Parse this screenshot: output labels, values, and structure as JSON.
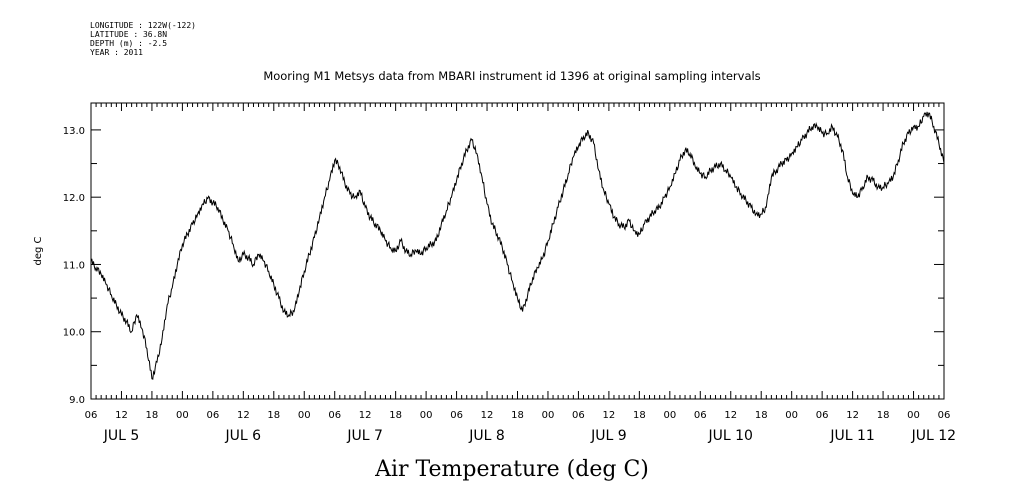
{
  "header": {
    "longitude": "LONGITUDE : 122W(-122)",
    "latitude": "LATITUDE : 36.8N",
    "depth": "DEPTH (m) : -2.5",
    "year": "YEAR : 2011"
  },
  "chart_data": {
    "type": "line",
    "title": "Mooring M1 Metsys data from MBARI instrument id 1396 at original sampling intervals",
    "xlabel": "Air Temperature (deg C)",
    "ylabel": "deg C",
    "ylim": [
      9.0,
      13.4
    ],
    "y_ticks": [
      "9.0",
      "10.0",
      "11.0",
      "12.0",
      "13.0"
    ],
    "x_range_hours": [
      0,
      168
    ],
    "x_hour_ticks": [
      "06",
      "12",
      "18",
      "00",
      "06",
      "12",
      "18",
      "00",
      "06",
      "12",
      "18",
      "00",
      "06",
      "12",
      "18",
      "00",
      "06",
      "12",
      "18",
      "00",
      "06",
      "12",
      "18",
      "00",
      "06",
      "12",
      "18",
      "00",
      "06"
    ],
    "x_day_labels": [
      {
        "label": "JUL  5",
        "hour": 6
      },
      {
        "label": "JUL  6",
        "hour": 30
      },
      {
        "label": "JUL  7",
        "hour": 54
      },
      {
        "label": "JUL  8",
        "hour": 78
      },
      {
        "label": "JUL  9",
        "hour": 102
      },
      {
        "label": "JUL 10",
        "hour": 126
      },
      {
        "label": "JUL 11",
        "hour": 150
      },
      {
        "label": "JUL 12",
        "hour": 166
      }
    ],
    "grid": false,
    "series": [
      {
        "color": "#000000",
        "x_hours": [
          0,
          1,
          2,
          3,
          4,
          5,
          6,
          7,
          8,
          9,
          10,
          11,
          12,
          13,
          14,
          15,
          16,
          17,
          18,
          19,
          20,
          21,
          22,
          23,
          24,
          25,
          26,
          27,
          28,
          29,
          30,
          31,
          32,
          33,
          34,
          35,
          36,
          37,
          38,
          39,
          40,
          41,
          42,
          43,
          44,
          45,
          46,
          47,
          48,
          49,
          50,
          51,
          52,
          53,
          54,
          55,
          56,
          57,
          58,
          59,
          60,
          61,
          62,
          63,
          64,
          65,
          66,
          67,
          68,
          69,
          70,
          71,
          72,
          73,
          74,
          75,
          76,
          77,
          78,
          79,
          80,
          81,
          82,
          83,
          84,
          85,
          86,
          87,
          88,
          89,
          90,
          91,
          92,
          93,
          94,
          95,
          96,
          97,
          98,
          99,
          100,
          101,
          102,
          103,
          104,
          105,
          106,
          107,
          108,
          109,
          110,
          111,
          112,
          113,
          114,
          115,
          116,
          117,
          118,
          119,
          120,
          121,
          122,
          123,
          124,
          125,
          126,
          127,
          128,
          129,
          130,
          131,
          132,
          133,
          134,
          135,
          136,
          137,
          138,
          139,
          140,
          141,
          142,
          143,
          144,
          145,
          146,
          147,
          148,
          149,
          150,
          151,
          152,
          153,
          154,
          155,
          156,
          157,
          158,
          159,
          160,
          161,
          162,
          163,
          164,
          165,
          166,
          167,
          168
        ],
        "values": [
          11.05,
          10.95,
          10.85,
          10.7,
          10.55,
          10.4,
          10.25,
          10.15,
          10.0,
          10.25,
          10.05,
          9.75,
          9.3,
          9.55,
          9.9,
          10.4,
          10.65,
          11.0,
          11.3,
          11.45,
          11.6,
          11.75,
          11.9,
          11.98,
          11.92,
          11.85,
          11.65,
          11.5,
          11.3,
          11.05,
          11.15,
          11.1,
          11.0,
          11.15,
          11.05,
          10.9,
          10.7,
          10.5,
          10.3,
          10.25,
          10.3,
          10.6,
          10.9,
          11.15,
          11.4,
          11.7,
          12.0,
          12.25,
          12.55,
          12.45,
          12.2,
          12.05,
          12.0,
          12.1,
          11.85,
          11.7,
          11.6,
          11.5,
          11.35,
          11.25,
          11.2,
          11.35,
          11.2,
          11.15,
          11.2,
          11.15,
          11.25,
          11.3,
          11.35,
          11.6,
          11.8,
          12.0,
          12.25,
          12.5,
          12.7,
          12.85,
          12.65,
          12.3,
          11.9,
          11.6,
          11.45,
          11.25,
          11.0,
          10.75,
          10.5,
          10.3,
          10.55,
          10.8,
          10.95,
          11.1,
          11.35,
          11.6,
          11.85,
          12.1,
          12.35,
          12.6,
          12.75,
          12.9,
          12.95,
          12.8,
          12.4,
          12.1,
          11.9,
          11.7,
          11.6,
          11.55,
          11.65,
          11.5,
          11.45,
          11.6,
          11.7,
          11.8,
          11.85,
          12.0,
          12.15,
          12.35,
          12.55,
          12.7,
          12.65,
          12.45,
          12.35,
          12.3,
          12.4,
          12.45,
          12.5,
          12.4,
          12.3,
          12.15,
          12.05,
          11.95,
          11.85,
          11.75,
          11.75,
          11.85,
          12.3,
          12.4,
          12.5,
          12.55,
          12.65,
          12.75,
          12.85,
          12.95,
          13.05,
          13.05,
          12.95,
          12.95,
          13.05,
          12.9,
          12.7,
          12.3,
          12.05,
          12.0,
          12.15,
          12.3,
          12.25,
          12.15,
          12.15,
          12.2,
          12.3,
          12.55,
          12.8,
          12.95,
          13.05,
          13.05,
          13.2,
          13.25,
          13.05,
          12.8,
          12.5
        ]
      }
    ]
  }
}
